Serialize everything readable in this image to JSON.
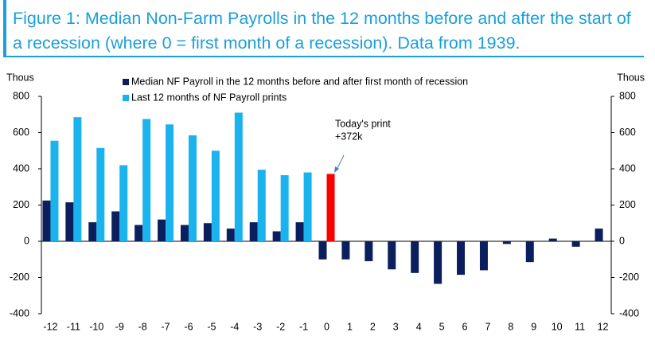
{
  "chart_data": {
    "type": "bar",
    "title": "Figure 1: Median Non-Farm Payrolls in the 12 months before and after the start of a recession (where 0 = first month of a recession). Data from 1939.",
    "y_label": "Thous",
    "y2_label": "Thous",
    "categories": [
      "-12",
      "-11",
      "-10",
      "-9",
      "-8",
      "-7",
      "-6",
      "-5",
      "-4",
      "-3",
      "-2",
      "-1",
      "0",
      "1",
      "2",
      "3",
      "4",
      "5",
      "6",
      "7",
      "8",
      "9",
      "10",
      "11",
      "12"
    ],
    "series": [
      {
        "name": "Median NF Payroll in the 12 months before and after first month of recession",
        "color": "#0b1f5e",
        "values": [
          225,
          215,
          105,
          165,
          90,
          120,
          90,
          100,
          70,
          105,
          55,
          105,
          -100,
          -100,
          -110,
          -155,
          -175,
          -235,
          -185,
          -160,
          -15,
          -115,
          15,
          -30,
          70
        ]
      },
      {
        "name": "Last 12 months of NF Payroll prints",
        "color": "#1bb3ed",
        "values": [
          555,
          685,
          515,
          420,
          675,
          645,
          585,
          500,
          710,
          395,
          365,
          380,
          372,
          null,
          null,
          null,
          null,
          null,
          null,
          null,
          null,
          null,
          null,
          null,
          null
        ]
      }
    ],
    "annotation": {
      "text": "Today's print",
      "label": "+372k",
      "category": "0",
      "color": "#ff0000"
    },
    "ylim": [
      -400,
      800
    ],
    "yticks": [
      -400,
      -200,
      0,
      200,
      400,
      600,
      800
    ],
    "y2lim": [
      -400,
      800
    ],
    "y2ticks": [
      -400,
      -200,
      0,
      200,
      400,
      600,
      800
    ],
    "grid": false
  }
}
